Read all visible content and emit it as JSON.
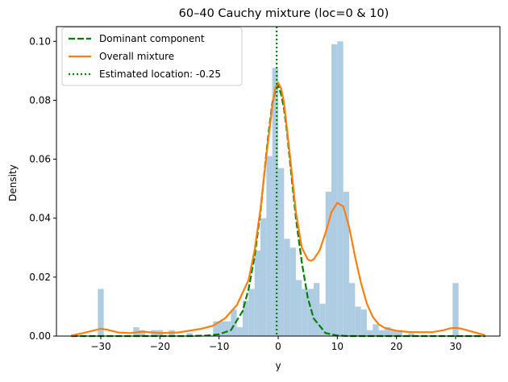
{
  "chart_data": {
    "type": "histogram+line",
    "title": "60–40 Cauchy mixture (loc=0 & 10)",
    "xlabel": "y",
    "ylabel": "Density",
    "xlim": [
      -37.5,
      37.5
    ],
    "ylim": [
      0,
      0.105
    ],
    "xticks": [
      -30,
      -20,
      -10,
      0,
      10,
      20,
      30
    ],
    "xtick_labels": [
      "−30",
      "−20",
      "−10",
      "0",
      "10",
      "20",
      "30"
    ],
    "yticks": [
      0.0,
      0.02,
      0.04,
      0.06,
      0.08,
      0.1
    ],
    "ytick_labels": [
      "0.00",
      "0.02",
      "0.04",
      "0.06",
      "0.08",
      "0.10"
    ],
    "grid": false,
    "legend_position": "top-left",
    "histogram": {
      "color": "#aecde3",
      "bins": [
        {
          "x0": -30.5,
          "x1": -29.5,
          "density": 0.016
        },
        {
          "x0": -24.5,
          "x1": -23.5,
          "density": 0.003
        },
        {
          "x0": -23.5,
          "x1": -22.5,
          "density": 0.002
        },
        {
          "x0": -21.5,
          "x1": -20.5,
          "density": 0.002
        },
        {
          "x0": -20.5,
          "x1": -19.5,
          "density": 0.002
        },
        {
          "x0": -18.5,
          "x1": -17.5,
          "density": 0.002
        },
        {
          "x0": -15.5,
          "x1": -14.5,
          "density": 0.001
        },
        {
          "x0": -11.0,
          "x1": -8.0,
          "density": 0.005
        },
        {
          "x0": -8.0,
          "x1": -7.0,
          "density": 0.009
        },
        {
          "x0": -7.0,
          "x1": -6.0,
          "density": 0.003
        },
        {
          "x0": -6.0,
          "x1": -5.0,
          "density": 0.012
        },
        {
          "x0": -5.0,
          "x1": -4.0,
          "density": 0.016
        },
        {
          "x0": -4.0,
          "x1": -3.0,
          "density": 0.029
        },
        {
          "x0": -3.0,
          "x1": -2.0,
          "density": 0.04
        },
        {
          "x0": -2.0,
          "x1": -1.0,
          "density": 0.061
        },
        {
          "x0": -1.0,
          "x1": 0.0,
          "density": 0.091
        },
        {
          "x0": 0.0,
          "x1": 1.0,
          "density": 0.057
        },
        {
          "x0": 1.0,
          "x1": 2.0,
          "density": 0.033
        },
        {
          "x0": 2.0,
          "x1": 3.0,
          "density": 0.03
        },
        {
          "x0": 3.0,
          "x1": 4.0,
          "density": 0.019
        },
        {
          "x0": 4.0,
          "x1": 5.0,
          "density": 0.016
        },
        {
          "x0": 5.0,
          "x1": 6.0,
          "density": 0.016
        },
        {
          "x0": 6.0,
          "x1": 7.0,
          "density": 0.018
        },
        {
          "x0": 7.0,
          "x1": 8.0,
          "density": 0.011
        },
        {
          "x0": 8.0,
          "x1": 9.0,
          "density": 0.049
        },
        {
          "x0": 9.0,
          "x1": 10.0,
          "density": 0.099
        },
        {
          "x0": 10.0,
          "x1": 11.0,
          "density": 0.1
        },
        {
          "x0": 11.0,
          "x1": 12.0,
          "density": 0.049
        },
        {
          "x0": 12.0,
          "x1": 13.0,
          "density": 0.018
        },
        {
          "x0": 13.0,
          "x1": 14.0,
          "density": 0.01
        },
        {
          "x0": 14.0,
          "x1": 15.0,
          "density": 0.009
        },
        {
          "x0": 15.0,
          "x1": 16.0,
          "density": 0.002
        },
        {
          "x0": 16.0,
          "x1": 17.0,
          "density": 0.004
        },
        {
          "x0": 17.0,
          "x1": 18.0,
          "density": 0.002
        },
        {
          "x0": 18.0,
          "x1": 19.0,
          "density": 0.003
        },
        {
          "x0": 19.0,
          "x1": 20.0,
          "density": 0.002
        },
        {
          "x0": 20.0,
          "x1": 21.0,
          "density": 0.002
        },
        {
          "x0": 22.0,
          "x1": 23.0,
          "density": 0.001
        },
        {
          "x0": 29.5,
          "x1": 30.5,
          "density": 0.018
        }
      ]
    },
    "series": [
      {
        "name": "Dominant component",
        "color": "#008000",
        "style": "dashed",
        "x": [
          -35,
          -30,
          -25,
          -20,
          -15,
          -12,
          -10,
          -8,
          -6,
          -5,
          -4,
          -3,
          -2,
          -1.5,
          -1,
          -0.5,
          0,
          0.5,
          1,
          1.5,
          2,
          3,
          4,
          5,
          6,
          8,
          10,
          12,
          15,
          20,
          25,
          30,
          35
        ],
        "y": [
          0,
          0,
          0,
          0,
          0,
          0.0002,
          0.0006,
          0.002,
          0.0085,
          0.016,
          0.027,
          0.042,
          0.062,
          0.071,
          0.079,
          0.083,
          0.085,
          0.082,
          0.077,
          0.069,
          0.059,
          0.04,
          0.025,
          0.013,
          0.006,
          0.001,
          0.0002,
          0,
          0,
          0,
          0,
          0,
          0
        ]
      },
      {
        "name": "Overall mixture",
        "color": "#ff7f0e",
        "style": "solid",
        "x": [
          -35,
          -33,
          -31,
          -30,
          -29,
          -27,
          -25,
          -23,
          -20,
          -17,
          -15,
          -13,
          -11,
          -9,
          -7,
          -5,
          -4,
          -3,
          -2,
          -1,
          -0.5,
          0,
          0.5,
          1,
          2,
          3,
          4,
          5,
          5.5,
          6,
          7,
          8,
          9,
          10,
          11,
          12,
          13,
          14,
          15,
          16,
          17,
          18,
          20,
          22,
          24,
          26,
          28,
          29,
          30,
          31,
          33,
          35
        ],
        "y": [
          0.0002,
          0.001,
          0.002,
          0.0025,
          0.0022,
          0.0012,
          0.001,
          0.0015,
          0.001,
          0.0012,
          0.0018,
          0.0025,
          0.0035,
          0.006,
          0.0105,
          0.019,
          0.029,
          0.043,
          0.061,
          0.078,
          0.084,
          0.086,
          0.084,
          0.079,
          0.061,
          0.042,
          0.03,
          0.026,
          0.0255,
          0.026,
          0.029,
          0.035,
          0.042,
          0.0452,
          0.044,
          0.037,
          0.027,
          0.018,
          0.011,
          0.0065,
          0.004,
          0.0028,
          0.0018,
          0.0014,
          0.0013,
          0.0013,
          0.002,
          0.0026,
          0.0028,
          0.0025,
          0.0014,
          0.0003
        ]
      }
    ],
    "vline": {
      "name": "Estimated location: -0.25",
      "x": -0.25,
      "color": "#008000",
      "style": "dotted"
    },
    "legend": [
      {
        "label": "Dominant component",
        "color": "#008000",
        "style": "dashed"
      },
      {
        "label": "Overall mixture",
        "color": "#ff7f0e",
        "style": "solid"
      },
      {
        "label": "Estimated location: -0.25",
        "color": "#008000",
        "style": "dotted"
      }
    ]
  }
}
